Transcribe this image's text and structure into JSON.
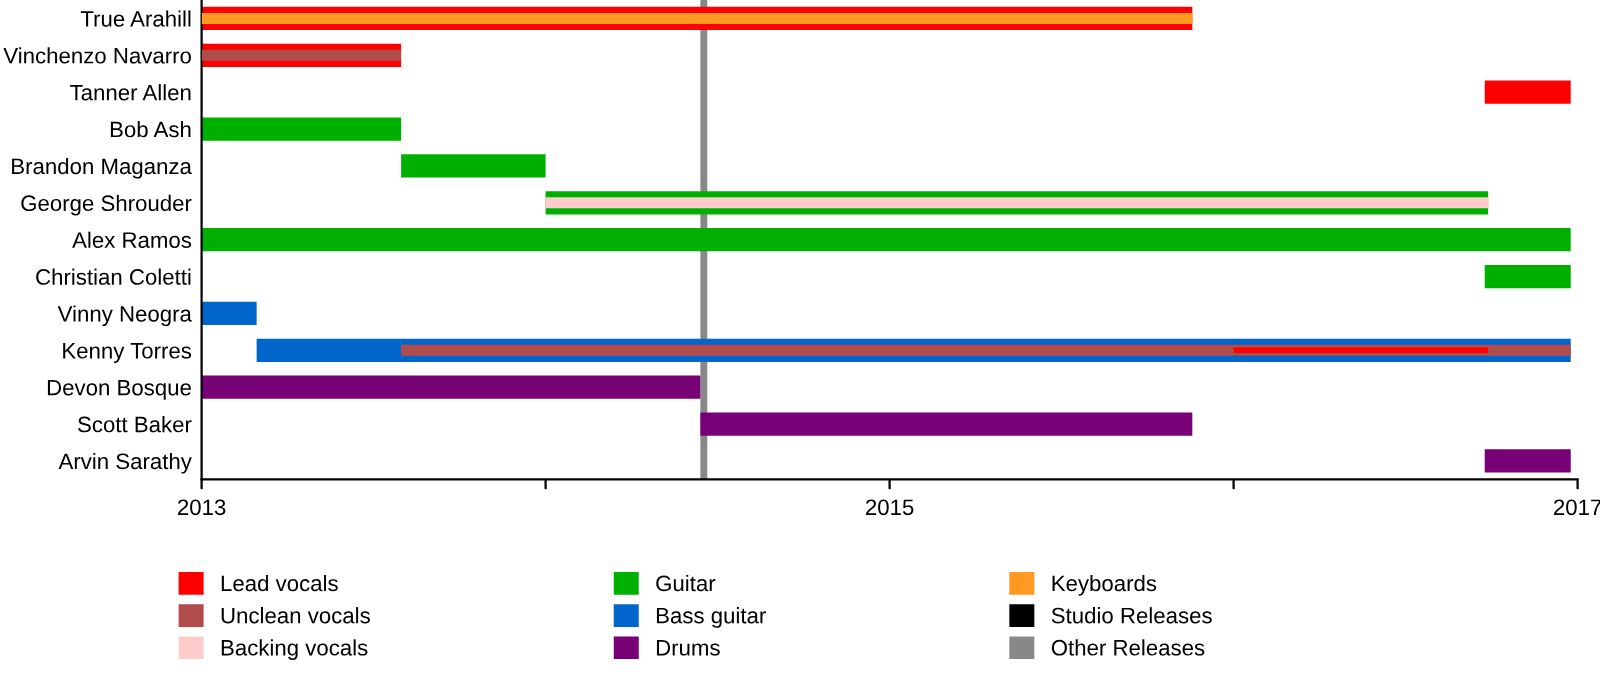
{
  "chart_data": {
    "type": "bar",
    "orientation": "horizontal",
    "categories": [
      "True Arahill",
      "Vinchenzo Navarro",
      "Tanner Allen",
      "Bob Ash",
      "Brandon Maganza",
      "George Shrouder",
      "Alex Ramos",
      "Christian Coletti",
      "Vinny Neogra",
      "Kenny Torres",
      "Devon Bosque",
      "Scott Baker",
      "Arvin Sarathy"
    ],
    "series": [
      {
        "name": "Lead vocals",
        "color": "#ff0000",
        "values": [
          2.88,
          0.58,
          0.25,
          null,
          null,
          null,
          null,
          null,
          null,
          0.74,
          null,
          null,
          null
        ],
        "base": [
          2013,
          2013,
          2016.73,
          null,
          null,
          null,
          null,
          null,
          null,
          2016.0,
          null,
          null,
          null
        ]
      },
      {
        "name": "Unclean vocals",
        "color": "#b24c4c",
        "values": [
          null,
          0.58,
          null,
          null,
          null,
          null,
          null,
          null,
          null,
          3.4,
          null,
          null,
          null
        ],
        "base": [
          null,
          2013,
          null,
          null,
          null,
          null,
          null,
          null,
          null,
          2013.58,
          null,
          null,
          null
        ]
      },
      {
        "name": "Backing vocals",
        "color": "#ffcccc",
        "values": [
          null,
          null,
          null,
          null,
          null,
          2.74,
          null,
          null,
          null,
          null,
          null,
          null,
          null
        ],
        "base": [
          null,
          null,
          null,
          null,
          null,
          2014.0,
          null,
          null,
          null,
          null,
          null,
          null,
          null
        ]
      },
      {
        "name": "Guitar",
        "color": "#00b000",
        "values": [
          null,
          null,
          null,
          0.58,
          0.42,
          2.74,
          3.98,
          0.25,
          null,
          null,
          null,
          null,
          null
        ],
        "base": [
          null,
          null,
          null,
          2013,
          2013.58,
          2014.0,
          2013,
          2016.73,
          null,
          null,
          null,
          null,
          null
        ]
      },
      {
        "name": "Bass guitar",
        "color": "#0066cc",
        "values": [
          null,
          null,
          null,
          null,
          null,
          null,
          null,
          null,
          0.16,
          3.82,
          null,
          null,
          null
        ],
        "base": [
          null,
          null,
          null,
          null,
          null,
          null,
          null,
          null,
          2013,
          2013.16,
          null,
          null,
          null
        ]
      },
      {
        "name": "Drums",
        "color": "#770077",
        "values": [
          null,
          null,
          null,
          null,
          null,
          null,
          null,
          null,
          null,
          null,
          1.45,
          1.43,
          0.25
        ],
        "base": [
          null,
          null,
          null,
          null,
          null,
          null,
          null,
          null,
          null,
          null,
          2013,
          2014.45,
          2016.73
        ]
      },
      {
        "name": "Keyboards",
        "color": "#ff9922",
        "values": [
          2.88,
          null,
          null,
          null,
          null,
          null,
          null,
          null,
          null,
          null,
          null,
          null,
          null
        ],
        "base": [
          2013,
          null,
          null,
          null,
          null,
          null,
          null,
          null,
          null,
          null,
          null,
          null,
          null
        ]
      },
      {
        "name": "Studio Releases",
        "color": "#000000",
        "values": [
          null,
          null,
          null,
          null,
          null,
          null,
          null,
          null,
          null,
          null,
          null,
          null,
          null
        ],
        "base": [
          null,
          null,
          null,
          null,
          null,
          null,
          null,
          null,
          null,
          null,
          null,
          null,
          null
        ]
      }
    ],
    "ref_lines": [
      {
        "axis": "x",
        "value": 2014.46,
        "label": "Other Releases",
        "color": "#888888"
      }
    ],
    "xlim": [
      2013,
      2017
    ],
    "xticks": [
      2013,
      {
        "value": 2014,
        "label": null
      },
      2015,
      {
        "value": 2016,
        "label": null
      },
      2017
    ],
    "grid": false,
    "legend": "bottom"
  }
}
